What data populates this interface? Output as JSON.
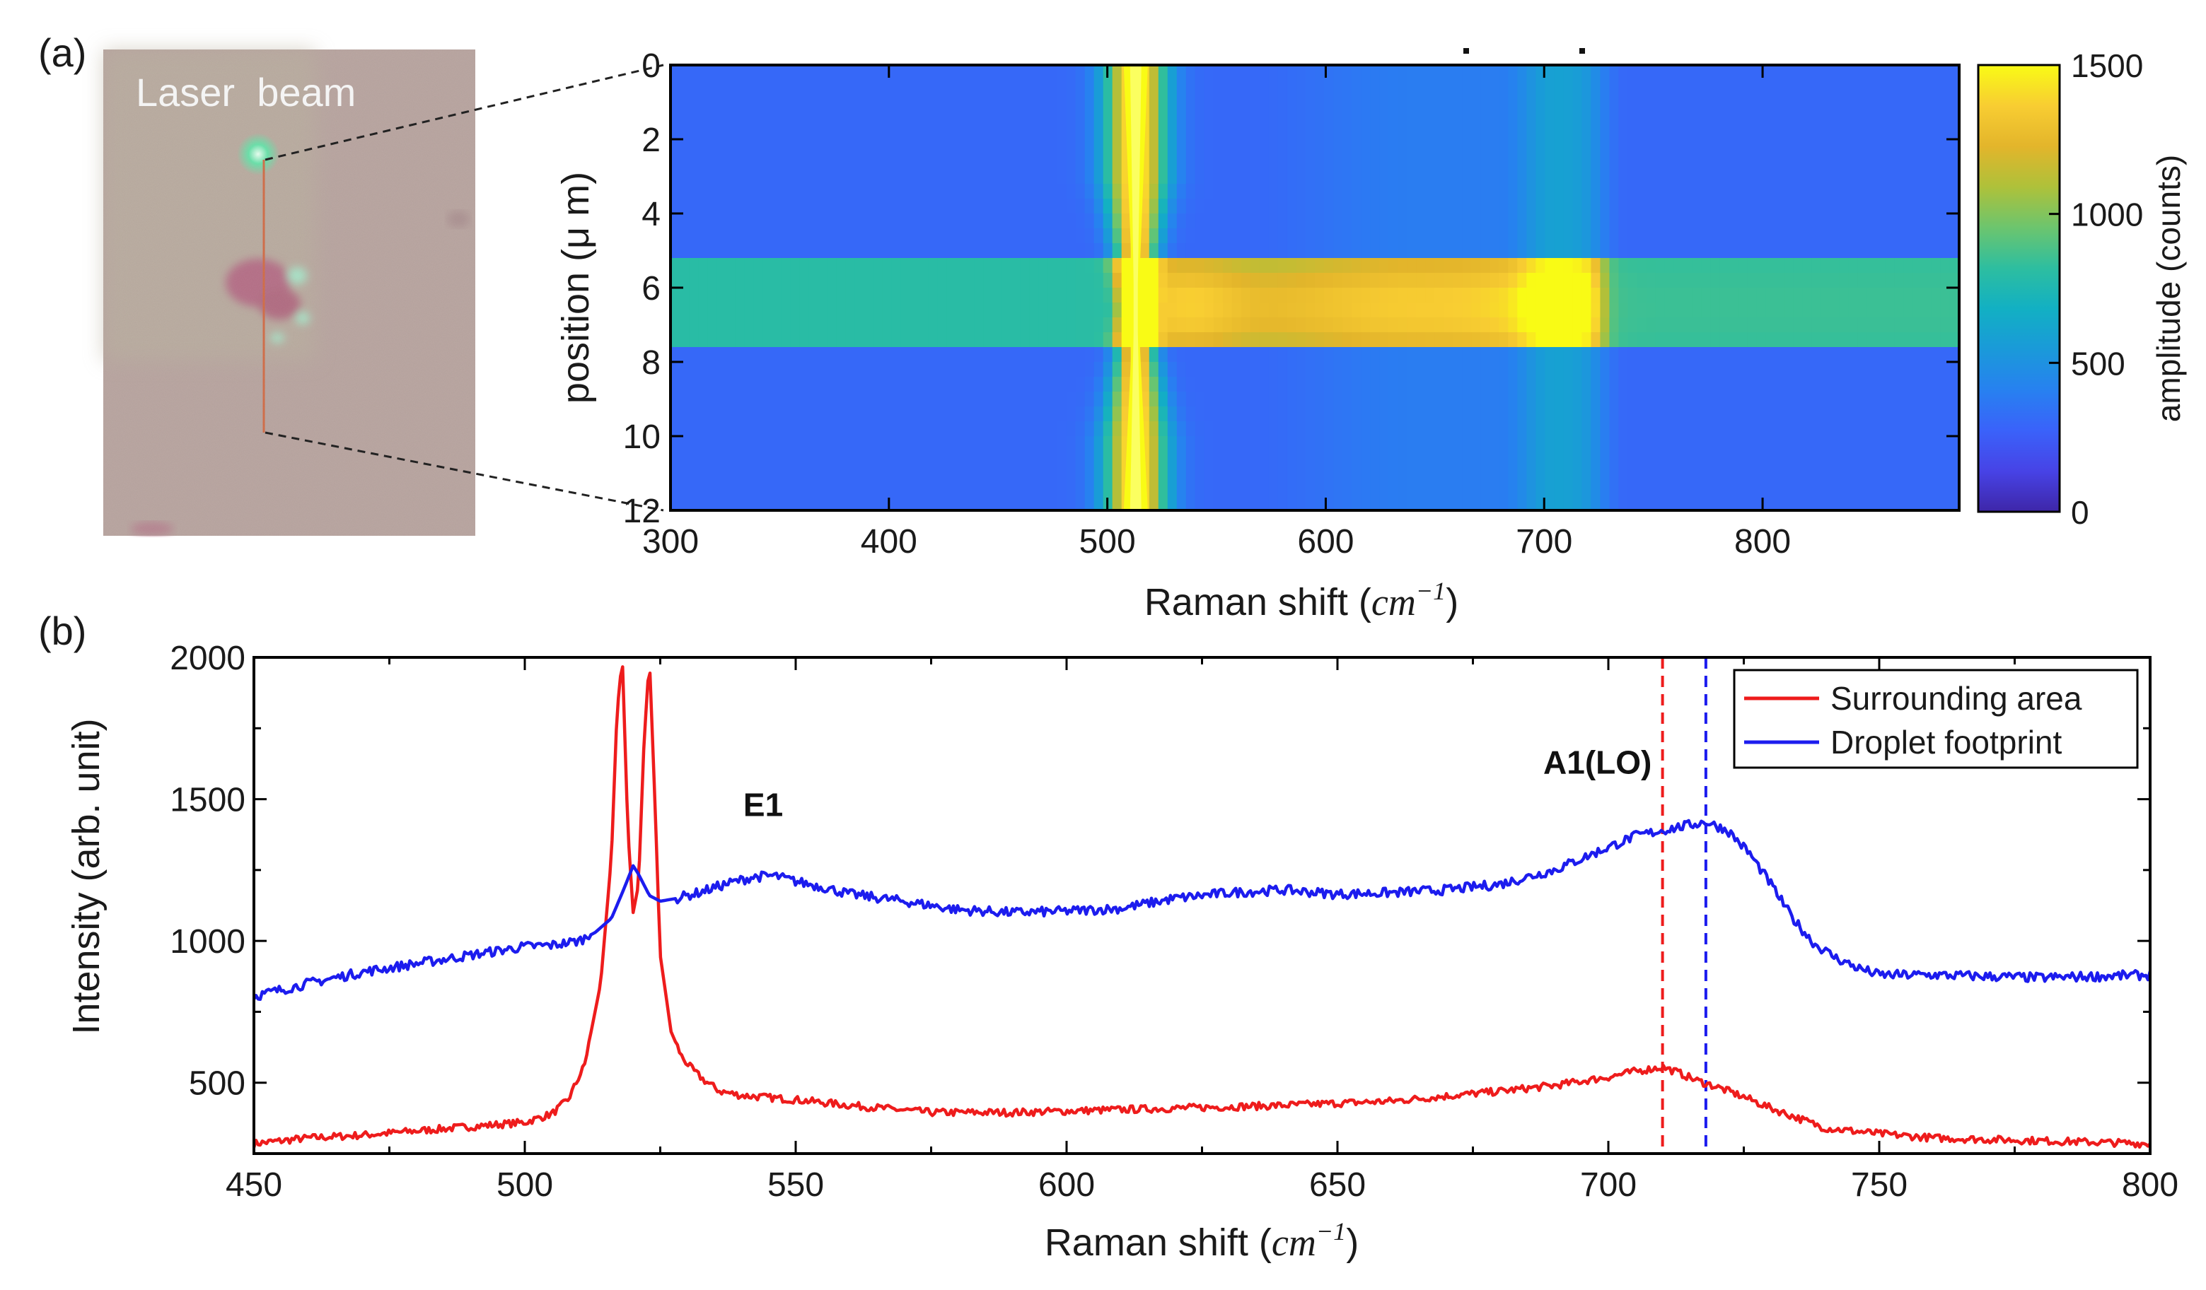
{
  "panels": {
    "a_label": "(a)",
    "b_label": "(b)"
  },
  "micrograph": {
    "caption": "Laser  beam"
  },
  "chart_data": [
    {
      "id": "heatmap",
      "type": "heatmap",
      "title": "",
      "xlabel_text": "Raman shift (",
      "xlabel_unit": "cm",
      "xlabel_sup": "−1",
      "xlabel_close": ")",
      "ylabel": "position (μ m)",
      "xlim": [
        300,
        890
      ],
      "ylim": [
        0,
        12
      ],
      "xticks": [
        300,
        400,
        500,
        600,
        700,
        800
      ],
      "yticks": [
        0,
        2,
        4,
        6,
        8,
        10,
        12
      ],
      "colorbar": {
        "label": "amplitude (counts)",
        "range": [
          0,
          1500
        ],
        "ticks": [
          0,
          500,
          1000,
          1500
        ],
        "colormap": [
          "#3e26a8",
          "#4743e6",
          "#3a62fa",
          "#2781f0",
          "#1a9ad9",
          "#12b0c3",
          "#2dbea0",
          "#6cc56e",
          "#aec13a",
          "#e3b52b",
          "#f8cd32",
          "#f9fb15"
        ]
      },
      "features": {
        "background_counts": 300,
        "silicon_peak_cm": 513,
        "silicon_peak_counts": 1500,
        "band_rows_um": [
          5.2,
          7.8
        ],
        "band_counts": 800,
        "band_center_counts": 1250,
        "hot_spot_cm": 705,
        "hot_spot_counts": 1330
      }
    },
    {
      "id": "spectrum",
      "type": "line",
      "xlabel_text": "Raman shift (",
      "xlabel_unit": "cm",
      "xlabel_sup": "−1",
      "xlabel_close": ")",
      "ylabel": "Intensity (arb. unit)",
      "xlim": [
        450,
        800
      ],
      "ylim": [
        250,
        2000
      ],
      "xticks": [
        450,
        500,
        550,
        600,
        650,
        700,
        750,
        800
      ],
      "yticks": [
        500,
        1000,
        1500,
        2000
      ],
      "annotations": [
        {
          "text": "E1",
          "x": 544,
          "y": 1440
        },
        {
          "text": "A1(LO)",
          "x": 698,
          "y": 1590
        }
      ],
      "vlines": [
        {
          "x": 710,
          "color": "#ee1c1c"
        },
        {
          "x": 718,
          "color": "#1c1cee"
        }
      ],
      "legend": {
        "position": "top-right"
      },
      "series": [
        {
          "name": "Surrounding area",
          "color": "#ee1c1c",
          "x": [
            450,
            460,
            470,
            480,
            490,
            500,
            505,
            508,
            511,
            514,
            516,
            517,
            518,
            519,
            520,
            521,
            522,
            523,
            524,
            525,
            527,
            529,
            531,
            533,
            536,
            540,
            550,
            560,
            575,
            590,
            600,
            620,
            640,
            660,
            680,
            690,
            700,
            705,
            710,
            713,
            716,
            720,
            725,
            730,
            735,
            740,
            750,
            760,
            770,
            780,
            790,
            800
          ],
          "y": [
            285,
            305,
            315,
            330,
            345,
            360,
            390,
            440,
            560,
            850,
            1300,
            1800,
            2000,
            1400,
            1100,
            1200,
            1700,
            2000,
            1500,
            950,
            680,
            590,
            545,
            510,
            470,
            455,
            440,
            420,
            395,
            395,
            400,
            410,
            420,
            435,
            470,
            490,
            520,
            540,
            555,
            535,
            510,
            485,
            450,
            410,
            375,
            340,
            320,
            305,
            300,
            295,
            290,
            285
          ]
        },
        {
          "name": "Droplet footprint",
          "color": "#1c1cee",
          "x": [
            450,
            460,
            470,
            480,
            490,
            500,
            505,
            510,
            513,
            516,
            518,
            520,
            521,
            523,
            525,
            528,
            532,
            537,
            542,
            546,
            550,
            555,
            560,
            570,
            580,
            590,
            600,
            610,
            620,
            630,
            640,
            650,
            660,
            670,
            680,
            690,
            695,
            700,
            705,
            710,
            714,
            718,
            722,
            726,
            730,
            734,
            738,
            742,
            746,
            750,
            760,
            770,
            780,
            790,
            800
          ],
          "y": [
            805,
            850,
            890,
            920,
            950,
            980,
            985,
            1000,
            1030,
            1080,
            1170,
            1265,
            1235,
            1160,
            1140,
            1150,
            1170,
            1200,
            1225,
            1230,
            1210,
            1190,
            1165,
            1140,
            1110,
            1100,
            1105,
            1115,
            1150,
            1170,
            1180,
            1165,
            1170,
            1180,
            1200,
            1250,
            1290,
            1330,
            1370,
            1390,
            1405,
            1420,
            1390,
            1310,
            1200,
            1080,
            990,
            940,
            905,
            880,
            880,
            875,
            870,
            875,
            880
          ]
        }
      ]
    }
  ]
}
